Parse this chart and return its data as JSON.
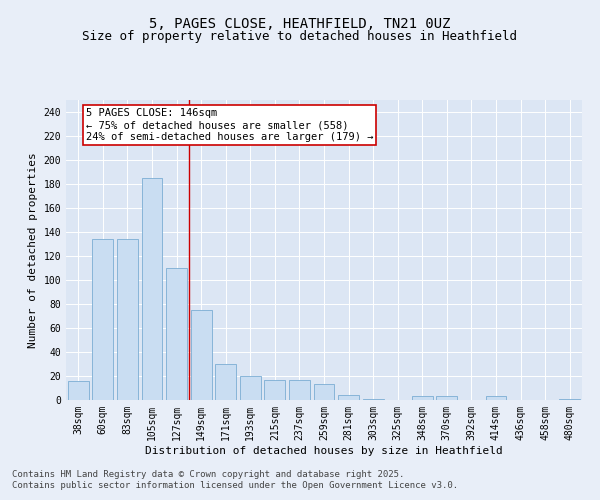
{
  "title_line1": "5, PAGES CLOSE, HEATHFIELD, TN21 0UZ",
  "title_line2": "Size of property relative to detached houses in Heathfield",
  "xlabel": "Distribution of detached houses by size in Heathfield",
  "ylabel": "Number of detached properties",
  "categories": [
    "38sqm",
    "60sqm",
    "83sqm",
    "105sqm",
    "127sqm",
    "149sqm",
    "171sqm",
    "193sqm",
    "215sqm",
    "237sqm",
    "259sqm",
    "281sqm",
    "303sqm",
    "325sqm",
    "348sqm",
    "370sqm",
    "392sqm",
    "414sqm",
    "436sqm",
    "458sqm",
    "480sqm"
  ],
  "values": [
    16,
    134,
    134,
    185,
    110,
    75,
    30,
    20,
    17,
    17,
    13,
    4,
    1,
    0,
    3,
    3,
    0,
    3,
    0,
    0,
    1
  ],
  "bar_color": "#c9ddf2",
  "bar_edge_color": "#7badd4",
  "vline_color": "#cc0000",
  "vline_index": 4.5,
  "annotation_box_color": "#cc0000",
  "annotation_text_line1": "5 PAGES CLOSE: 146sqm",
  "annotation_text_line2": "← 75% of detached houses are smaller (558)",
  "annotation_text_line3": "24% of semi-detached houses are larger (179) →",
  "ylim": [
    0,
    250
  ],
  "yticks": [
    0,
    20,
    40,
    60,
    80,
    100,
    120,
    140,
    160,
    180,
    200,
    220,
    240
  ],
  "fig_bg_color": "#e8eef8",
  "plot_bg_color": "#dce6f4",
  "title_fontsize": 10,
  "subtitle_fontsize": 9,
  "axis_label_fontsize": 8,
  "tick_fontsize": 7,
  "annotation_fontsize": 7.5,
  "footer_fontsize": 6.5,
  "footer_line1": "Contains HM Land Registry data © Crown copyright and database right 2025.",
  "footer_line2": "Contains public sector information licensed under the Open Government Licence v3.0."
}
